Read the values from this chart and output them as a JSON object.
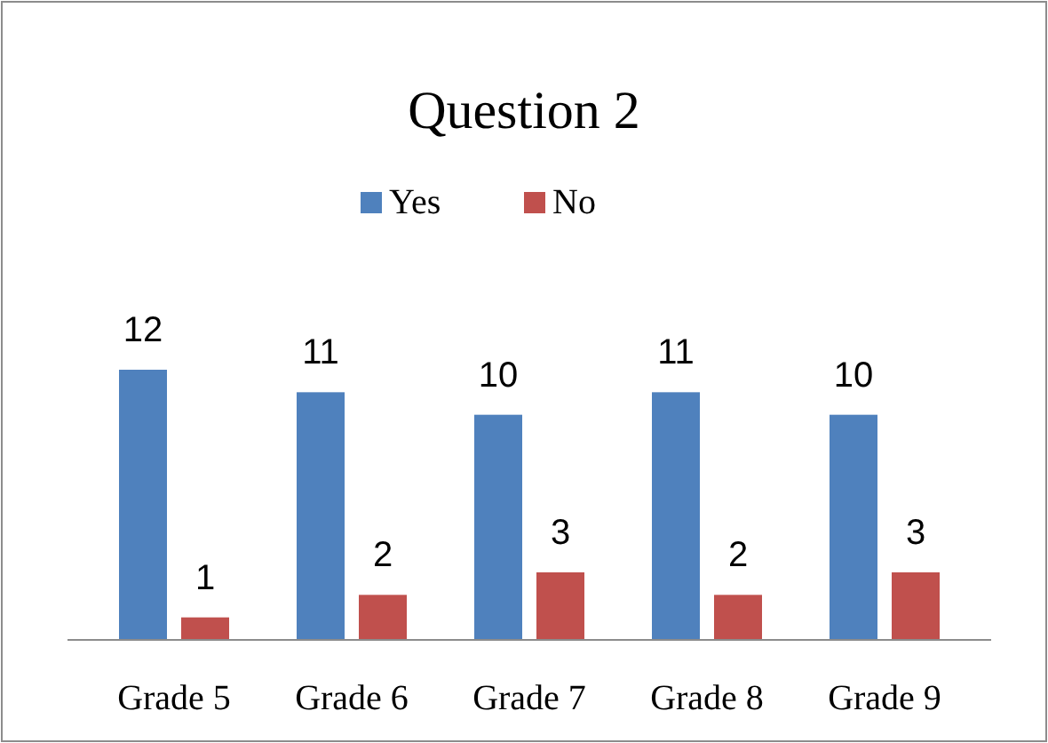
{
  "chart_data": {
    "type": "bar",
    "title": "Question 2",
    "categories": [
      "Grade 5",
      "Grade 6",
      "Grade 7",
      "Grade 8",
      "Grade 9"
    ],
    "series": [
      {
        "name": "Yes",
        "color": "#4f81bd",
        "values": [
          12,
          11,
          10,
          11,
          10
        ]
      },
      {
        "name": "No",
        "color": "#c0504d",
        "values": [
          1,
          2,
          3,
          2,
          3
        ]
      }
    ],
    "data_labels": true,
    "legend": "top",
    "grid": false
  }
}
